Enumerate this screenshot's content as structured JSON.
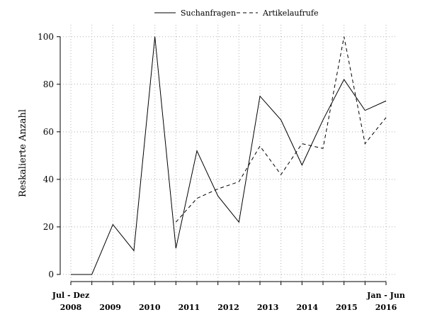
{
  "chart_data": {
    "type": "line",
    "title": "",
    "xlabel": "",
    "ylabel": "Reskalierte Anzahl",
    "ylim": [
      -3,
      105
    ],
    "yticks": [
      0,
      20,
      40,
      60,
      80,
      100
    ],
    "grid": true,
    "legend_placement": "top-center",
    "x_tick_labels": [
      {
        "top": "Jul - Dez",
        "bottom": "2008"
      },
      {
        "top": "",
        "bottom": "2009"
      },
      {
        "top": "",
        "bottom": "2010"
      },
      {
        "top": "",
        "bottom": "2011"
      },
      {
        "top": "",
        "bottom": "2012"
      },
      {
        "top": "",
        "bottom": "2013"
      },
      {
        "top": "",
        "bottom": "2014"
      },
      {
        "top": "",
        "bottom": "2015"
      },
      {
        "top": "Jan - Jun",
        "bottom": "2016"
      }
    ],
    "series": [
      {
        "name": "Suchanfragen",
        "dash": "solid",
        "values": [
          0,
          0,
          21,
          10,
          100,
          11,
          52,
          33,
          22,
          75,
          65,
          46,
          65,
          82,
          69,
          73
        ]
      },
      {
        "name": "Artikelaufrufe",
        "dash": "dashed",
        "values": [
          null,
          null,
          null,
          null,
          null,
          22,
          32,
          36,
          39,
          54,
          42,
          55,
          53,
          100,
          55,
          66
        ]
      }
    ]
  }
}
